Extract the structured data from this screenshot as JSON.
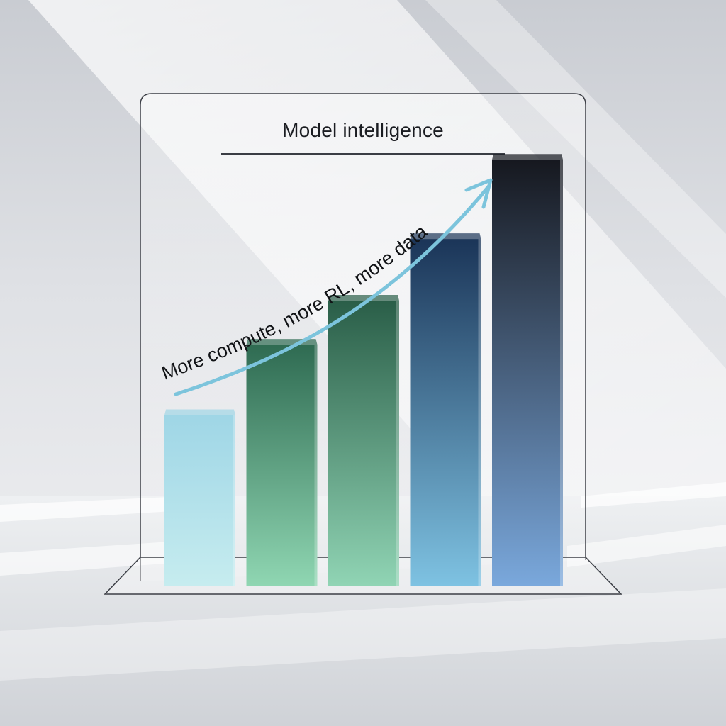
{
  "chart_data": {
    "type": "bar",
    "title": "Model intelligence",
    "categories": [
      "",
      "",
      "",
      "",
      ""
    ],
    "values": [
      1.0,
      1.4,
      1.65,
      2.0,
      2.45
    ],
    "ylim": [
      0,
      2.6
    ],
    "grid": false,
    "legend": "none",
    "annotation": "More compute, more RL, more data",
    "bar_colors": [
      {
        "top": "#9fd6e6",
        "bottom": "#c6ecef"
      },
      {
        "top": "#2f6b52",
        "bottom": "#8fd6b2"
      },
      {
        "top": "#2a5e48",
        "bottom": "#90d4b4"
      },
      {
        "top": "#1b3558",
        "bottom": "#7ec2e2"
      },
      {
        "top": "#16181f",
        "bottom": "#7aa8dc"
      }
    ],
    "arrow_color": "#7cc4dc"
  }
}
